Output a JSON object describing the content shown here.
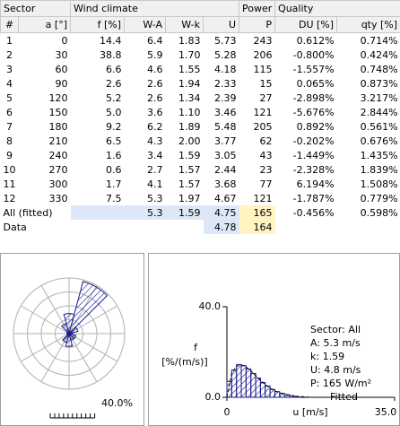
{
  "table": {
    "group_headers": [
      "Sector",
      "Wind climate",
      "Power",
      "Quality"
    ],
    "headers": [
      "#",
      "a [°]",
      "f [%]",
      "W-A",
      "W-k",
      "U",
      "P",
      "DU [%]",
      "qty [%]"
    ],
    "rows": [
      [
        "1",
        "0",
        "14.4",
        "6.4",
        "1.83",
        "5.73",
        "243",
        "0.612%",
        "0.714%"
      ],
      [
        "2",
        "30",
        "38.8",
        "5.9",
        "1.70",
        "5.28",
        "206",
        "-0.800%",
        "0.424%"
      ],
      [
        "3",
        "60",
        "6.6",
        "4.6",
        "1.55",
        "4.18",
        "115",
        "-1.557%",
        "0.748%"
      ],
      [
        "4",
        "90",
        "2.6",
        "2.6",
        "1.94",
        "2.33",
        "15",
        "0.065%",
        "0.873%"
      ],
      [
        "5",
        "120",
        "5.2",
        "2.6",
        "1.34",
        "2.39",
        "27",
        "-2.898%",
        "3.217%"
      ],
      [
        "6",
        "150",
        "5.0",
        "3.6",
        "1.10",
        "3.46",
        "121",
        "-5.676%",
        "2.844%"
      ],
      [
        "7",
        "180",
        "9.2",
        "6.2",
        "1.89",
        "5.48",
        "205",
        "0.892%",
        "0.561%"
      ],
      [
        "8",
        "210",
        "6.5",
        "4.3",
        "2.00",
        "3.77",
        "62",
        "-0.202%",
        "0.676%"
      ],
      [
        "9",
        "240",
        "1.6",
        "3.4",
        "1.59",
        "3.05",
        "43",
        "-1.449%",
        "1.435%"
      ],
      [
        "10",
        "270",
        "0.6",
        "2.7",
        "1.57",
        "2.44",
        "23",
        "-2.328%",
        "1.839%"
      ],
      [
        "11",
        "300",
        "1.7",
        "4.1",
        "1.57",
        "3.68",
        "77",
        "6.194%",
        "1.508%"
      ],
      [
        "12",
        "330",
        "7.5",
        "5.3",
        "1.97",
        "4.67",
        "121",
        "-1.787%",
        "0.779%"
      ]
    ],
    "all_row": [
      "All (fitted)",
      "5.3",
      "1.59",
      "4.75",
      "165",
      "-0.456%",
      "0.598%"
    ],
    "data_row": [
      "Data",
      "4.78",
      "164"
    ]
  },
  "rose": {
    "scale": {
      "value": 40,
      "label": "40.0%"
    }
  },
  "histogram": {
    "ylabel": [
      "f",
      "[%/(m/s)]"
    ],
    "xlabel": "u [m/s]",
    "ylim": [
      0,
      40
    ],
    "yticks": [
      {
        "value": 40,
        "label": "40.0"
      },
      {
        "value": 0,
        "label": "0.0"
      }
    ],
    "xlim": [
      0,
      35
    ],
    "xticks": [
      {
        "value": 0,
        "label": "0"
      },
      {
        "value": 35,
        "label": "35.0"
      }
    ],
    "bins": [
      0,
      1,
      2,
      3,
      4,
      5,
      6,
      7,
      8,
      9,
      10,
      11,
      12,
      13,
      14,
      15
    ],
    "values": [
      7,
      12,
      14.5,
      14,
      12.5,
      10.5,
      8.5,
      6.5,
      5,
      3.5,
      2.5,
      1.8,
      1.2,
      0.7,
      0.4
    ],
    "fitted_x": [
      0,
      1,
      2,
      3,
      4,
      5,
      6,
      7,
      8,
      9,
      10,
      12,
      14,
      17
    ],
    "fitted": [
      0,
      10.5,
      13.7,
      14.3,
      13.4,
      11.7,
      9.6,
      7.5,
      5.6,
      4.0,
      2.8,
      1.2,
      0.5,
      0.1
    ],
    "annotations": [
      "Sector: All",
      "A: 5.3 m/s",
      "k: 1.59",
      "U: 4.8 m/s",
      "P: 165 W/m²"
    ],
    "legend": "Fitted"
  }
}
